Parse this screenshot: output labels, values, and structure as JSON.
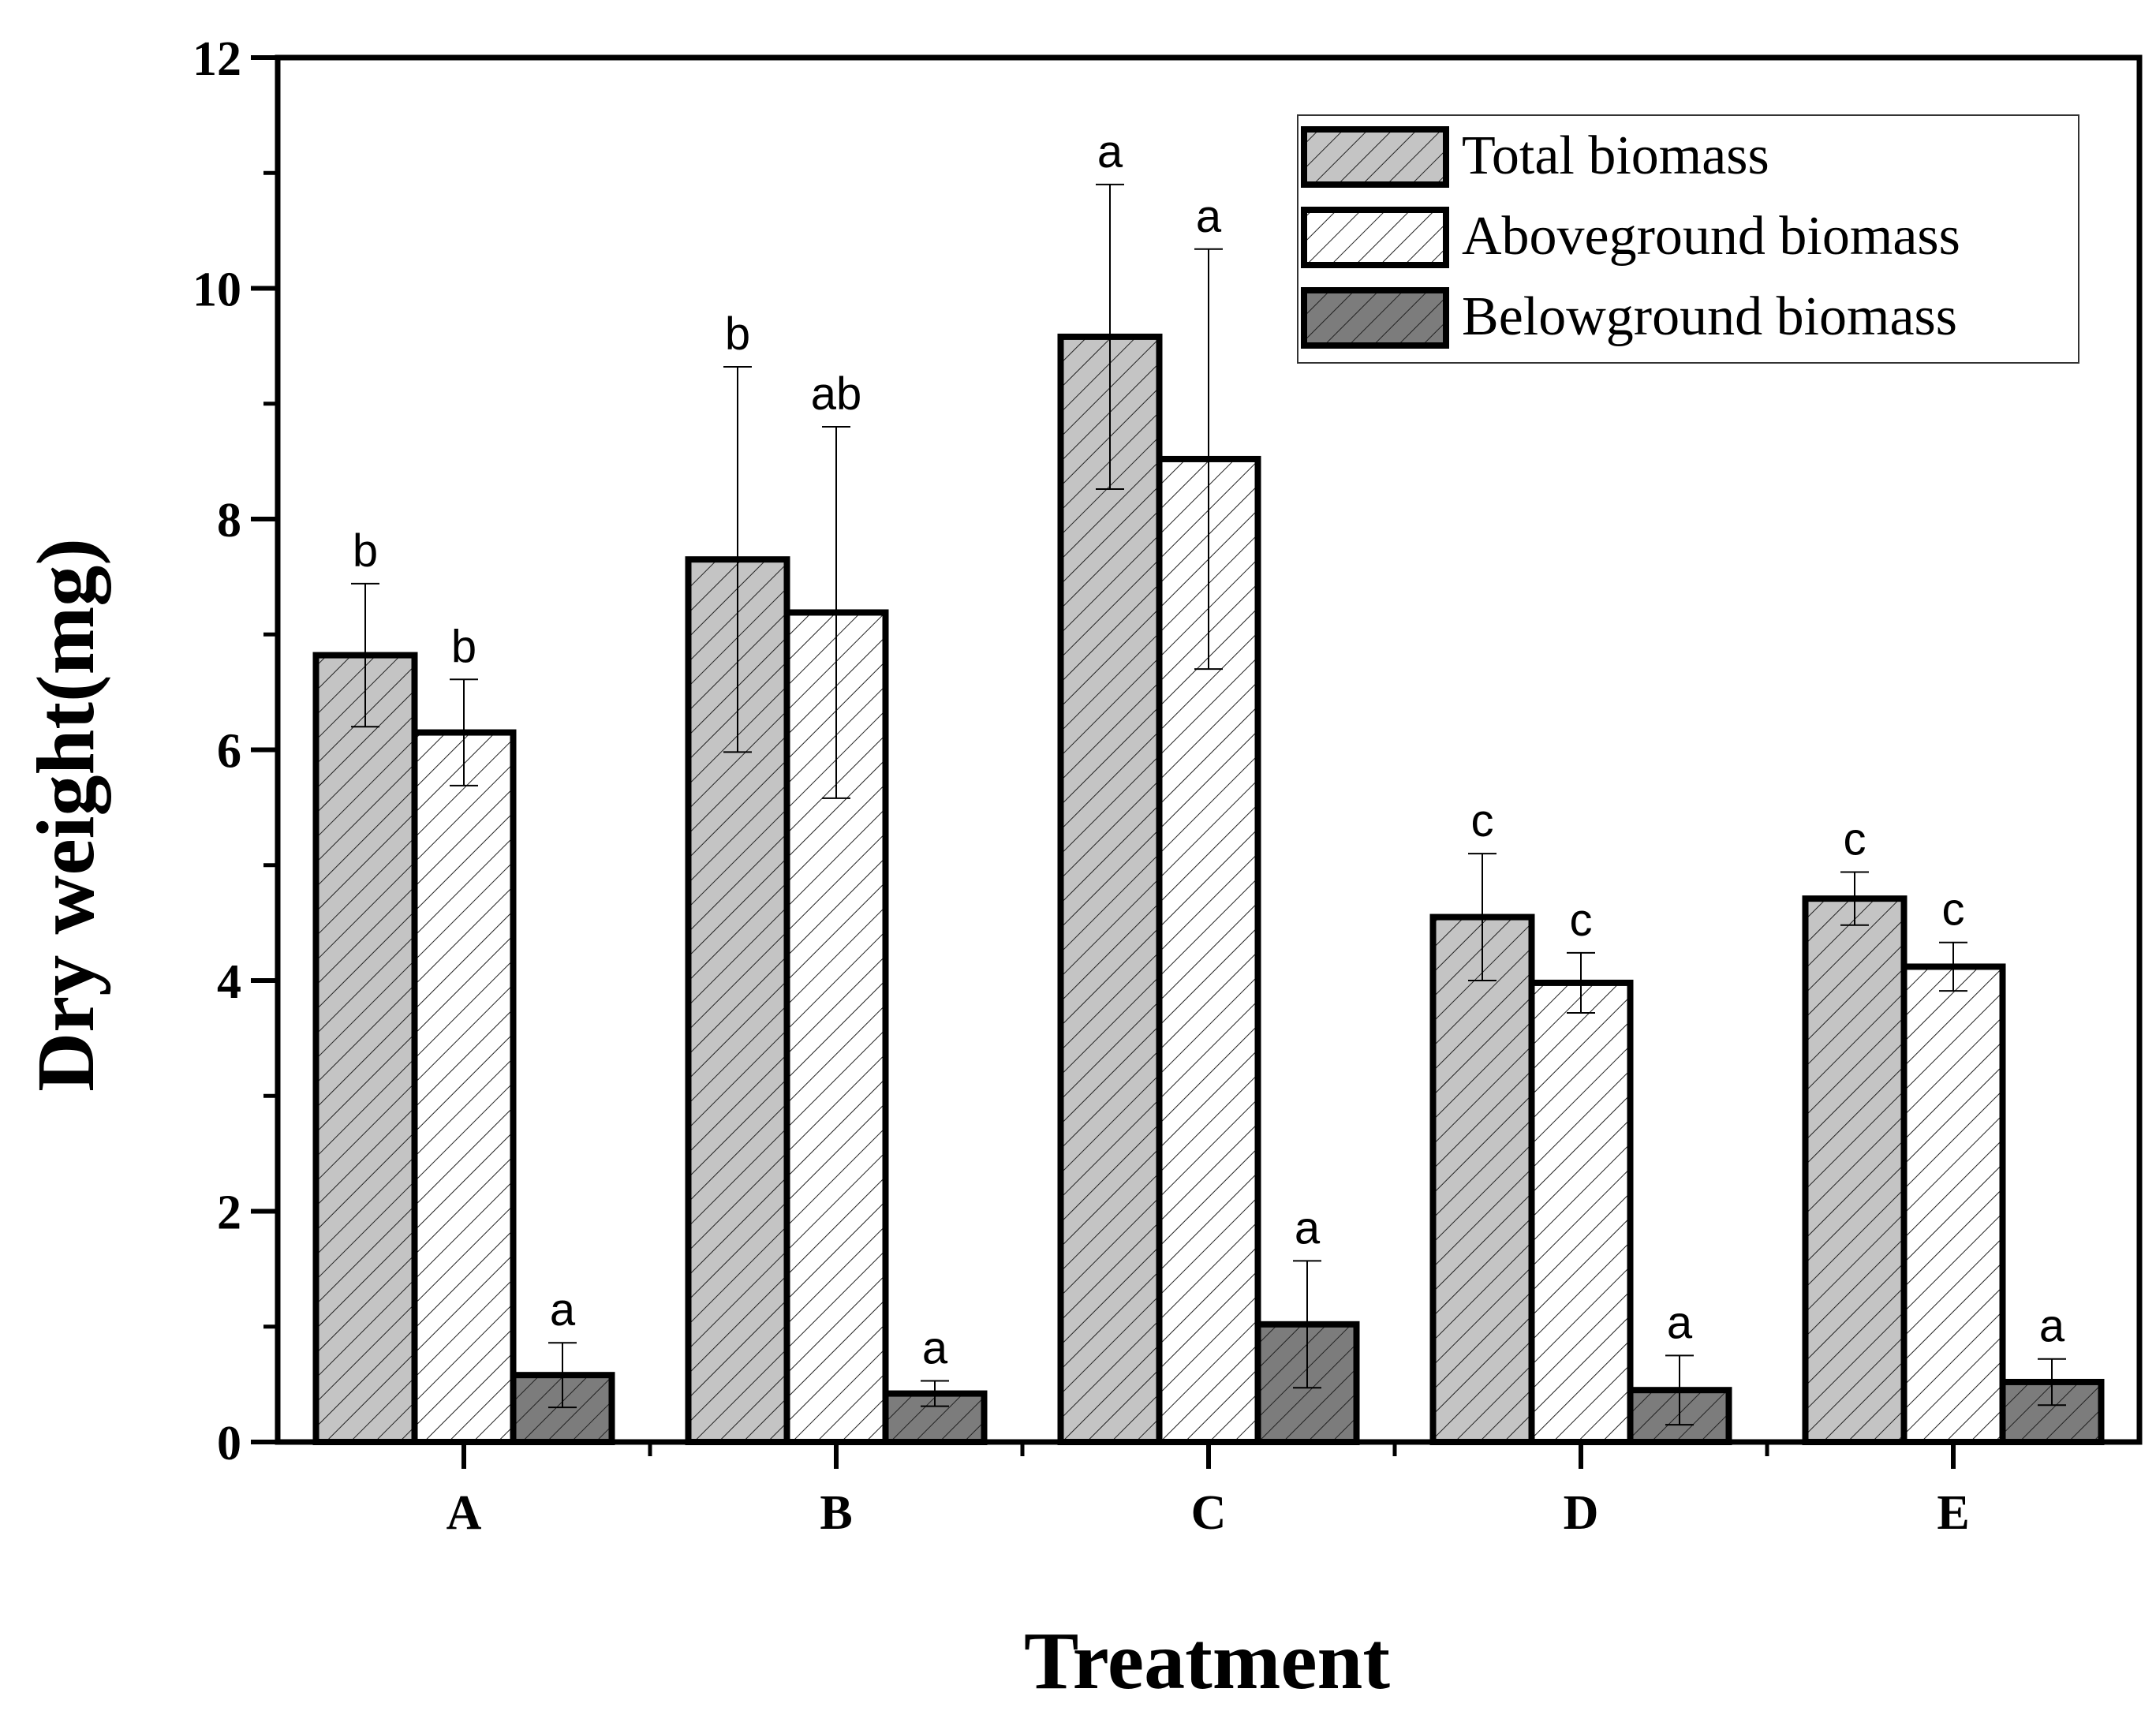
{
  "chart_data": {
    "type": "bar",
    "title": "",
    "xlabel": "Treatment",
    "ylabel": "Dry weight(mg)",
    "ylim": [
      0,
      12
    ],
    "yticks": [
      0,
      2,
      4,
      6,
      8,
      10,
      12
    ],
    "categories": [
      "A",
      "B",
      "C",
      "D",
      "E"
    ],
    "legend_position": "top-right",
    "series": [
      {
        "name": "Total biomass",
        "fill": "#c4c4c4",
        "values": [
          6.82,
          7.65,
          9.58,
          4.55,
          4.71
        ],
        "errors": [
          0.62,
          1.67,
          1.32,
          0.55,
          0.23
        ],
        "letters": [
          "b",
          "b",
          "a",
          "c",
          "c"
        ]
      },
      {
        "name": "Aboveground biomass",
        "fill": "#ffffff",
        "values": [
          6.15,
          7.19,
          8.52,
          3.98,
          4.12
        ],
        "errors": [
          0.46,
          1.61,
          1.82,
          0.26,
          0.21
        ],
        "letters": [
          "b",
          "ab",
          "a",
          "c",
          "c"
        ]
      },
      {
        "name": "Belowground biomass",
        "fill": "#7c7c7c",
        "values": [
          0.58,
          0.42,
          1.02,
          0.45,
          0.52
        ],
        "errors": [
          0.28,
          0.11,
          0.55,
          0.3,
          0.2
        ],
        "letters": [
          "a",
          "a",
          "a",
          "a",
          "a"
        ]
      }
    ]
  }
}
